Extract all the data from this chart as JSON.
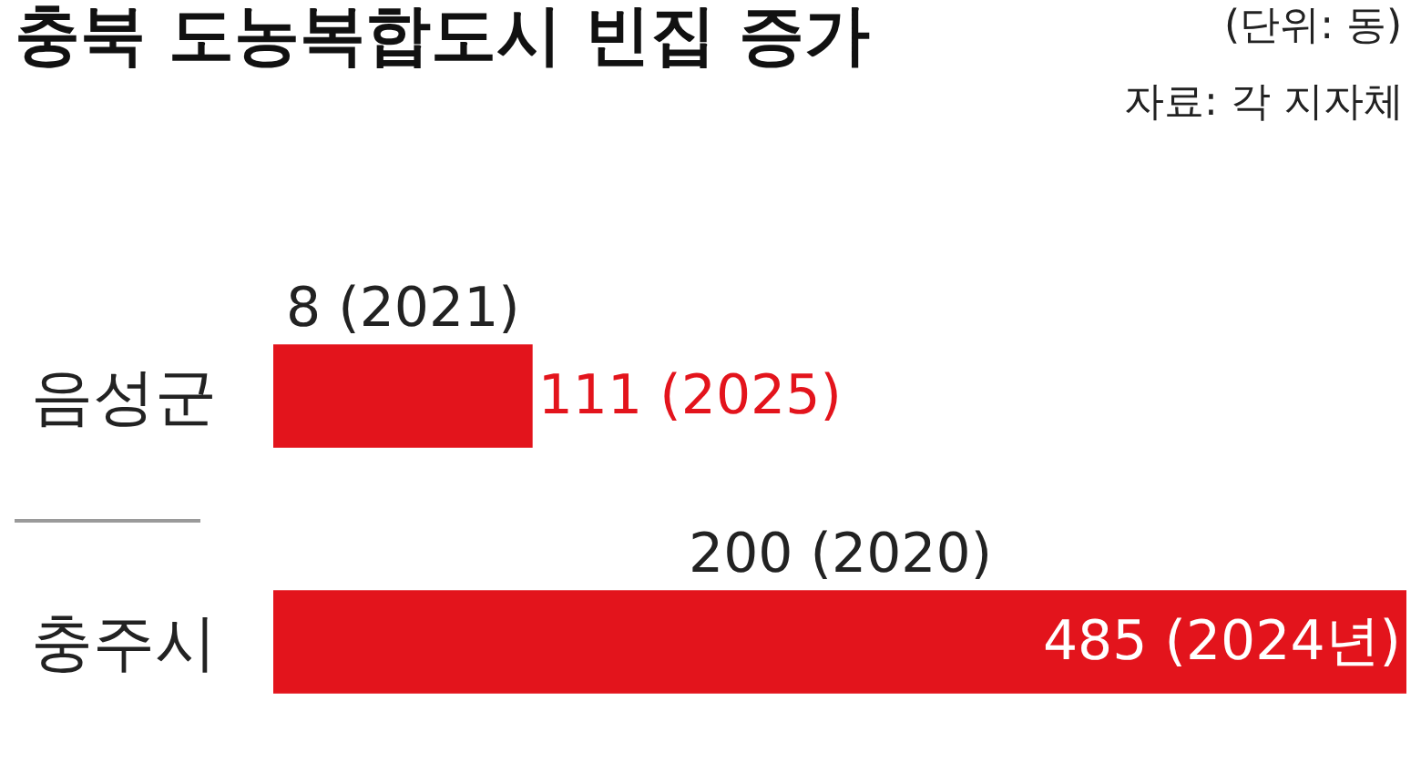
{
  "chart_data": {
    "type": "bar",
    "orientation": "horizontal",
    "title": "충북 도농복합도시 빈집 증가",
    "subtitle": "(단위: 동)",
    "categories": [
      "음성군",
      "충주시"
    ],
    "values": [
      111,
      485
    ],
    "value_labels": [
      "111 (2025)",
      "485 (2024년)"
    ],
    "color": "#e3141c",
    "annotations": [
      "자료: 각 지자체",
      "8 (2021)",
      "200 (2020)"
    ],
    "tick_labels": "y",
    "grid": false,
    "legend": false
  }
}
